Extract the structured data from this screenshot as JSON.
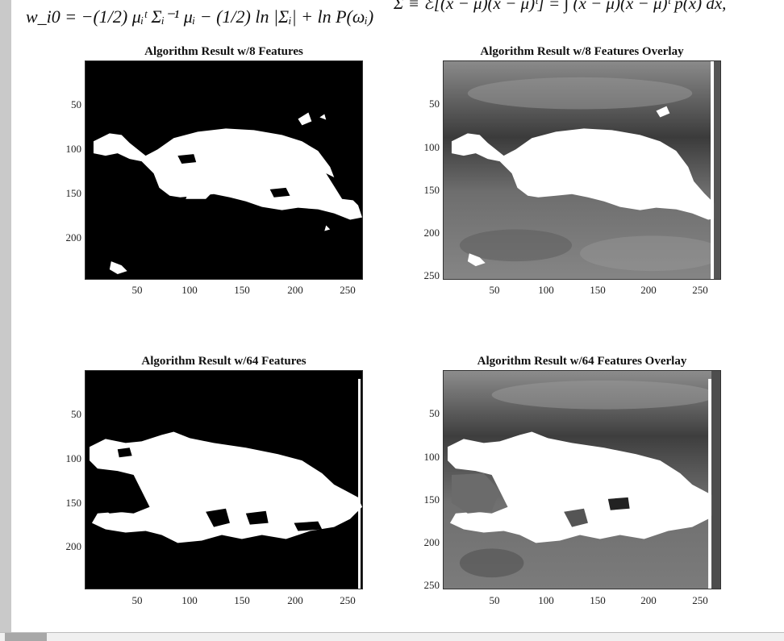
{
  "page": {
    "equation_left": "w_i0 = −(1/2) μᵢᵗ Σᵢ⁻¹ μᵢ − (1/2) ln |Σᵢ| + ln P(ωᵢ)",
    "equation_right": "Σ ≡ ℰ[(x − μ)(x − μ)ᵗ] = ∫ (x − μ)(x − μ)ᵗ p(x) dx,"
  },
  "plots": [
    {
      "title": "Algorithm Result w/8 Features",
      "yticks": [
        "50",
        "100",
        "150",
        "200"
      ],
      "xticks": [
        "50",
        "100",
        "150",
        "200",
        "250"
      ]
    },
    {
      "title": "Algorithm Result w/8 Features Overlay",
      "yticks": [
        "50",
        "100",
        "150",
        "200",
        "250"
      ],
      "xticks": [
        "50",
        "100",
        "150",
        "200",
        "250"
      ]
    },
    {
      "title": "Algorithm Result w/64 Features",
      "yticks": [
        "50",
        "100",
        "150",
        "200"
      ],
      "xticks": [
        "50",
        "100",
        "150",
        "200",
        "250"
      ]
    },
    {
      "title": "Algorithm Result w/64 Features Overlay",
      "yticks": [
        "50",
        "100",
        "150",
        "200",
        "250"
      ],
      "xticks": [
        "50",
        "100",
        "150",
        "200",
        "250"
      ]
    }
  ]
}
